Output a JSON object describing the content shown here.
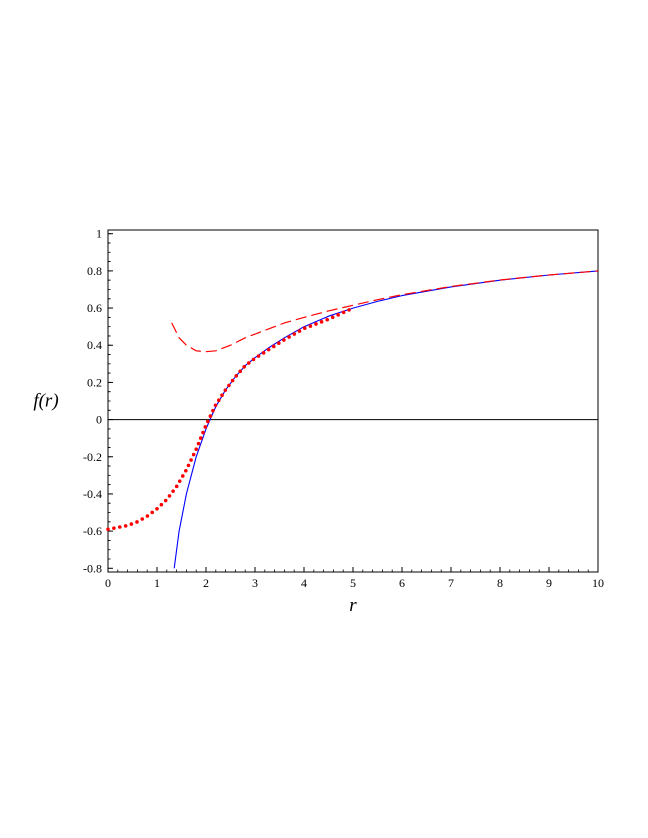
{
  "chart_data": {
    "type": "line",
    "title": "",
    "xlabel": "r",
    "ylabel": "f(r)",
    "xlim": [
      0,
      10
    ],
    "ylim": [
      -0.82,
      1.02
    ],
    "x_ticks": [
      0,
      1,
      2,
      3,
      4,
      5,
      6,
      7,
      8,
      9,
      10
    ],
    "x_tick_labels": [
      "0",
      "1",
      "2",
      "3",
      "4",
      "5",
      "6",
      "7",
      "8",
      "9",
      "10"
    ],
    "y_ticks": [
      -0.8,
      -0.6,
      -0.4,
      -0.2,
      0,
      0.2,
      0.4,
      0.6,
      0.8,
      1
    ],
    "y_tick_labels": [
      "-0.8",
      "-0.6",
      "-0.4",
      "-0.2",
      "0",
      "0.2",
      "0.4",
      "0.6",
      "0.8",
      "1"
    ],
    "grid": false,
    "legend": "none",
    "reference_lines": [
      {
        "axis": "y",
        "value": 0,
        "color": "#000000"
      }
    ],
    "series": [
      {
        "style": "solid",
        "color": "#0000ff",
        "x": [
          1.35,
          1.45,
          1.6,
          1.8,
          2.0,
          2.2,
          2.4,
          2.6,
          2.8,
          3.0,
          3.3,
          3.6,
          4.0,
          4.5,
          5.0,
          5.5,
          6.0,
          7.0,
          8.0,
          9.0,
          10.0
        ],
        "y": [
          -0.8,
          -0.6,
          -0.4,
          -0.2,
          -0.05,
          0.07,
          0.16,
          0.23,
          0.29,
          0.333,
          0.39,
          0.44,
          0.5,
          0.556,
          0.6,
          0.636,
          0.667,
          0.714,
          0.75,
          0.778,
          0.8
        ]
      },
      {
        "style": "dotted",
        "color": "#ff0000",
        "x": [
          0,
          0.2,
          0.4,
          0.6,
          0.8,
          1.0,
          1.2,
          1.4,
          1.6,
          1.8,
          2.0,
          2.2,
          2.4,
          2.6,
          2.8,
          3.0,
          3.3,
          3.6,
          4.0,
          4.5,
          5.0
        ],
        "y": [
          -0.59,
          -0.58,
          -0.57,
          -0.55,
          -0.52,
          -0.48,
          -0.43,
          -0.36,
          -0.27,
          -0.16,
          -0.03,
          0.08,
          0.16,
          0.23,
          0.29,
          0.33,
          0.38,
          0.43,
          0.49,
          0.54,
          0.6
        ]
      },
      {
        "style": "dashed",
        "color": "#ff0000",
        "x": [
          1.3,
          1.45,
          1.6,
          1.8,
          2.0,
          2.2,
          2.5,
          2.8,
          3.2,
          3.6,
          4.0,
          4.5,
          5.0,
          5.5,
          6.0,
          7.0,
          8.0,
          9.0,
          10.0
        ],
        "y": [
          0.52,
          0.44,
          0.4,
          0.37,
          0.365,
          0.37,
          0.4,
          0.44,
          0.48,
          0.52,
          0.55,
          0.585,
          0.615,
          0.645,
          0.672,
          0.716,
          0.751,
          0.778,
          0.8
        ]
      }
    ]
  }
}
